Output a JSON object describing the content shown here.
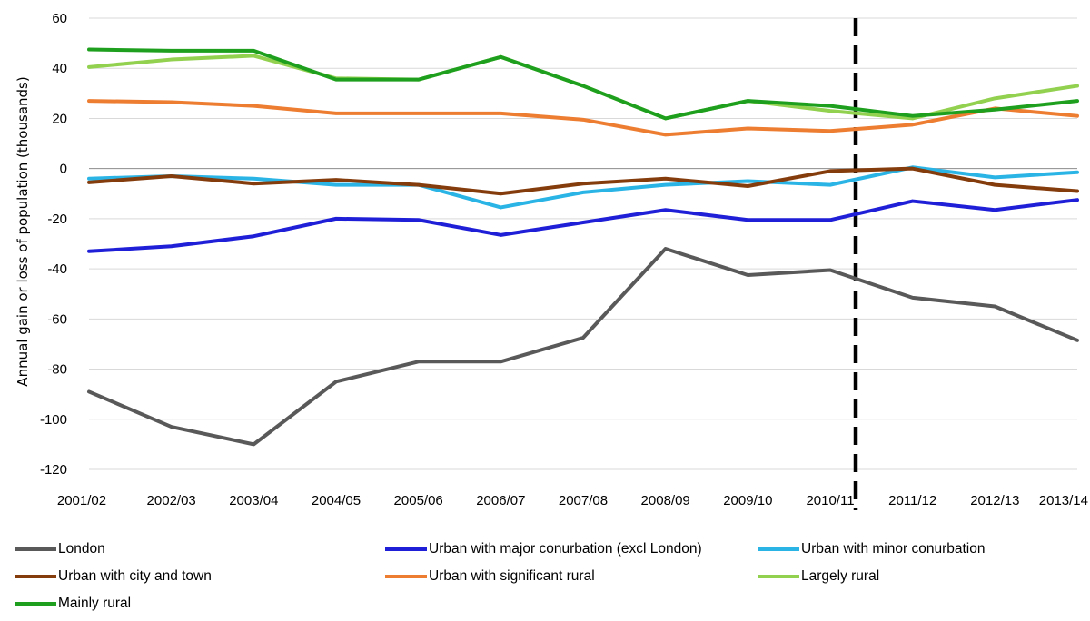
{
  "chart_data": {
    "type": "line",
    "title": "",
    "xlabel": "",
    "ylabel": "Annual gain or loss of population (thousands)",
    "ylim": [
      -120,
      60
    ],
    "yticks": [
      60,
      40,
      20,
      0,
      -20,
      -40,
      -60,
      -80,
      -100,
      -120
    ],
    "categories": [
      "2001/02",
      "2002/03",
      "2003/04",
      "2004/05",
      "2005/06",
      "2006/07",
      "2007/08",
      "2008/09",
      "2009/10",
      "2010/11",
      "2011/12",
      "2012/13",
      "2013/14"
    ],
    "grid": true,
    "legend_position": "bottom",
    "marker_line_between": [
      "2010/11",
      "2011/12"
    ],
    "series": [
      {
        "name": "London",
        "color": "#595959",
        "values": [
          -89,
          -103,
          -110,
          -85,
          -77,
          -77,
          -67.5,
          -32,
          -42.5,
          -40.5,
          -51.5,
          -55,
          -68.5
        ]
      },
      {
        "name": "Urban with major conurbation (excl London)",
        "color": "#1f1fd8",
        "values": [
          -33,
          -31,
          -27,
          -20,
          -20.5,
          -26.5,
          -21.5,
          -16.5,
          -20.5,
          -20.5,
          -13,
          -16.5,
          -12.5
        ]
      },
      {
        "name": "Urban with minor conurbation",
        "color": "#2ab4e6",
        "values": [
          -4,
          -3,
          -4,
          -6.5,
          -6.5,
          -15.5,
          -9.5,
          -6.5,
          -5,
          -6.5,
          0.5,
          -3.5,
          -1.5
        ]
      },
      {
        "name": "Urban with city and town",
        "color": "#843c0c",
        "values": [
          -5.5,
          -3,
          -6,
          -4.5,
          -6.5,
          -10,
          -6,
          -4,
          -7,
          -1,
          0,
          -6.5,
          -9
        ]
      },
      {
        "name": "Urban with significant rural",
        "color": "#ed7d31",
        "values": [
          27,
          26.5,
          25,
          22,
          22,
          22,
          19.5,
          13.5,
          16,
          15,
          17.5,
          24,
          21
        ]
      },
      {
        "name": "Largely rural",
        "color": "#92d050",
        "values": [
          40.5,
          43.5,
          45,
          36,
          35.5,
          44.5,
          33,
          20,
          27,
          23,
          20,
          28,
          33
        ]
      },
      {
        "name": "Mainly rural",
        "color": "#1ea01e",
        "values": [
          47.5,
          47,
          47,
          35.5,
          35.5,
          44.5,
          33,
          20,
          27,
          25,
          21,
          23.5,
          27
        ]
      }
    ]
  }
}
